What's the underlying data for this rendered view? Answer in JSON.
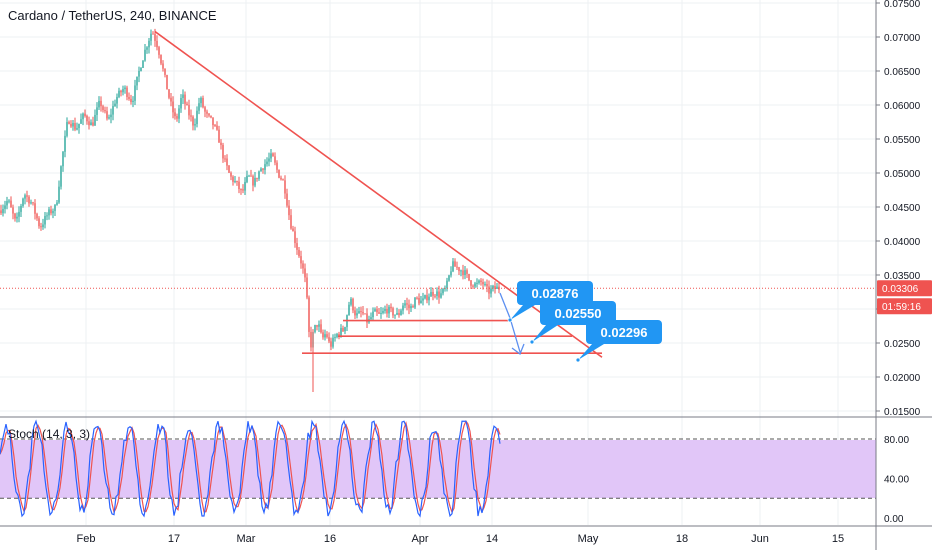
{
  "chart_data": {
    "type": "candlestick",
    "title": "Cardano / TetherUS, 240, BINANCE",
    "price_axis": {
      "ticks": [
        "0.07500",
        "0.07000",
        "0.06500",
        "0.06000",
        "0.05500",
        "0.05000",
        "0.04500",
        "0.04000",
        "0.03500",
        "0.03000",
        "0.02500",
        "0.02000",
        "0.01500"
      ],
      "min": 0.015,
      "max": 0.075
    },
    "current_price": "0.03306",
    "countdown": "01:59:16",
    "x_axis": {
      "labels": [
        "Feb",
        "17",
        "Mar",
        "16",
        "Apr",
        "14",
        "May",
        "18",
        "Jun",
        "15"
      ]
    },
    "price_path": [
      [
        0,
        0.0445
      ],
      [
        8,
        0.046
      ],
      [
        16,
        0.0425
      ],
      [
        24,
        0.047
      ],
      [
        32,
        0.0455
      ],
      [
        40,
        0.042
      ],
      [
        48,
        0.044
      ],
      [
        56,
        0.045
      ],
      [
        62,
        0.052
      ],
      [
        68,
        0.058
      ],
      [
        76,
        0.0565
      ],
      [
        84,
        0.0585
      ],
      [
        92,
        0.057
      ],
      [
        100,
        0.0605
      ],
      [
        108,
        0.0575
      ],
      [
        116,
        0.061
      ],
      [
        124,
        0.0625
      ],
      [
        132,
        0.0605
      ],
      [
        140,
        0.0655
      ],
      [
        146,
        0.0685
      ],
      [
        152,
        0.071
      ],
      [
        158,
        0.0685
      ],
      [
        164,
        0.0645
      ],
      [
        170,
        0.0605
      ],
      [
        176,
        0.0575
      ],
      [
        182,
        0.0615
      ],
      [
        188,
        0.059
      ],
      [
        194,
        0.057
      ],
      [
        200,
        0.061
      ],
      [
        206,
        0.0585
      ],
      [
        212,
        0.0575
      ],
      [
        218,
        0.0555
      ],
      [
        224,
        0.052
      ],
      [
        230,
        0.0495
      ],
      [
        236,
        0.0485
      ],
      [
        242,
        0.047
      ],
      [
        248,
        0.0495
      ],
      [
        254,
        0.0485
      ],
      [
        260,
        0.0505
      ],
      [
        266,
        0.0515
      ],
      [
        272,
        0.0525
      ],
      [
        278,
        0.05
      ],
      [
        284,
        0.0485
      ],
      [
        290,
        0.043
      ],
      [
        296,
        0.0395
      ],
      [
        302,
        0.0365
      ],
      [
        306,
        0.0335
      ],
      [
        310,
        0.024
      ],
      [
        314,
        0.027
      ],
      [
        318,
        0.028
      ],
      [
        322,
        0.0255
      ],
      [
        326,
        0.0265
      ],
      [
        330,
        0.0245
      ],
      [
        334,
        0.0255
      ],
      [
        338,
        0.0265
      ],
      [
        344,
        0.027
      ],
      [
        350,
        0.0315
      ],
      [
        356,
        0.029
      ],
      [
        362,
        0.0295
      ],
      [
        368,
        0.028
      ],
      [
        374,
        0.0295
      ],
      [
        380,
        0.029
      ],
      [
        386,
        0.03
      ],
      [
        392,
        0.0295
      ],
      [
        398,
        0.029
      ],
      [
        404,
        0.031
      ],
      [
        410,
        0.03
      ],
      [
        416,
        0.0315
      ],
      [
        422,
        0.031
      ],
      [
        428,
        0.032
      ],
      [
        434,
        0.0325
      ],
      [
        440,
        0.032
      ],
      [
        446,
        0.033
      ],
      [
        452,
        0.0365
      ],
      [
        458,
        0.036
      ],
      [
        464,
        0.0355
      ],
      [
        470,
        0.034
      ],
      [
        476,
        0.0335
      ],
      [
        482,
        0.034
      ],
      [
        488,
        0.0325
      ],
      [
        494,
        0.033
      ],
      [
        500,
        0.0331
      ]
    ],
    "stochastic": {
      "label": "Stoch (14, 3, 3)",
      "ticks": [
        "80.00",
        "40.00",
        "0.00"
      ],
      "upper_band": 80,
      "lower_band": 20
    },
    "annotations": {
      "trendline": {
        "from": [
          155,
          0.0708
        ],
        "to": [
          602,
          0.0229
        ]
      },
      "support_lines": [
        {
          "from": [
            343,
            0.0283
          ],
          "to": [
            512,
            0.0283
          ]
        },
        {
          "from": [
            338,
            0.026
          ],
          "to": [
            572,
            0.026
          ]
        },
        {
          "from": [
            302,
            0.0235
          ],
          "to": [
            602,
            0.0235
          ]
        }
      ],
      "targets": [
        "0.02876",
        "0.02550",
        "0.02296"
      ]
    }
  }
}
